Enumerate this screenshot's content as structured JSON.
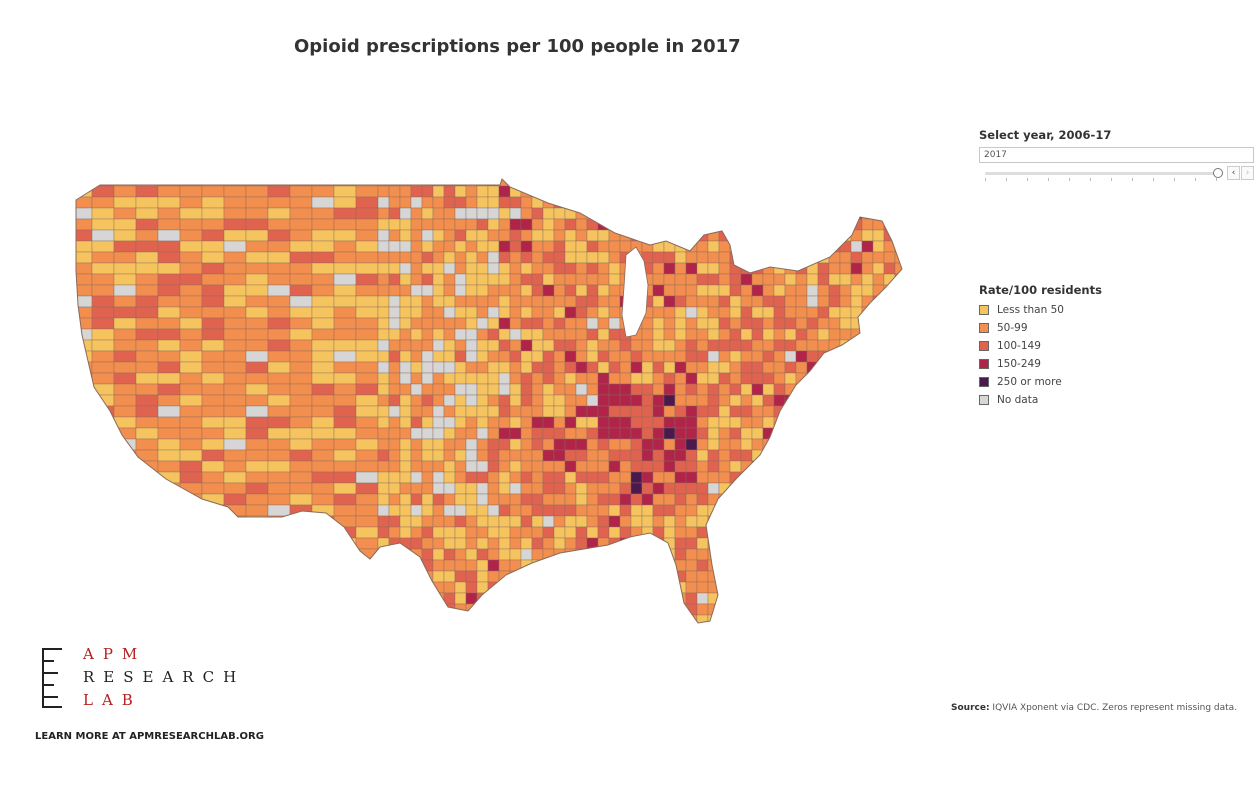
{
  "title": "Opioid prescriptions per 100 people in 2017",
  "year_filter": {
    "label": "Select year, 2006-17",
    "value": "2017",
    "range": [
      2006,
      2017
    ],
    "prev_icon": "chevron-left-icon",
    "next_icon": "chevron-right-icon",
    "prev_symbol": "‹",
    "next_symbol": "›"
  },
  "legend": {
    "title": "Rate/100 residents",
    "items": [
      {
        "label": "Less than 50",
        "color": "#f6c45f"
      },
      {
        "label": "50-99",
        "color": "#f28e4e"
      },
      {
        "label": "100-149",
        "color": "#e0634f"
      },
      {
        "label": "150-249",
        "color": "#b0244a"
      },
      {
        "label": "250 or more",
        "color": "#4a1a4e"
      },
      {
        "label": "No data",
        "color": "#d6d6d6"
      }
    ]
  },
  "logo": {
    "line1": "APM",
    "line2": "RESEARCH",
    "line3": "LAB"
  },
  "learn_more": "LEARN MORE AT APMRESEARCHLAB.ORG",
  "source": {
    "label": "Source:",
    "text": " IQVIA Xponent via CDC. Zeros represent missing data."
  },
  "map_colors": {
    "border": "#8a6a5a"
  }
}
